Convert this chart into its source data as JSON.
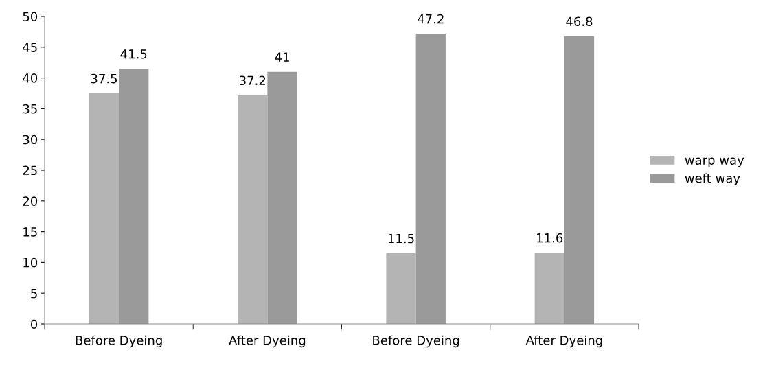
{
  "chart_data": {
    "type": "bar",
    "categories": [
      "Before Dyeing",
      "After Dyeing",
      "Before Dyeing",
      "After Dyeing"
    ],
    "series": [
      {
        "name": "warp way",
        "color": "#b4b4b4",
        "values": [
          37.5,
          37.2,
          11.5,
          11.6
        ]
      },
      {
        "name": "weft way",
        "color": "#9a9a9a",
        "values": [
          41.5,
          41,
          47.2,
          46.8
        ]
      }
    ],
    "ylim": [
      0,
      50
    ],
    "yticks": [
      0,
      5,
      10,
      15,
      20,
      25,
      30,
      35,
      40,
      45,
      50
    ],
    "data_labels": true,
    "grid": false,
    "legend": "right"
  }
}
